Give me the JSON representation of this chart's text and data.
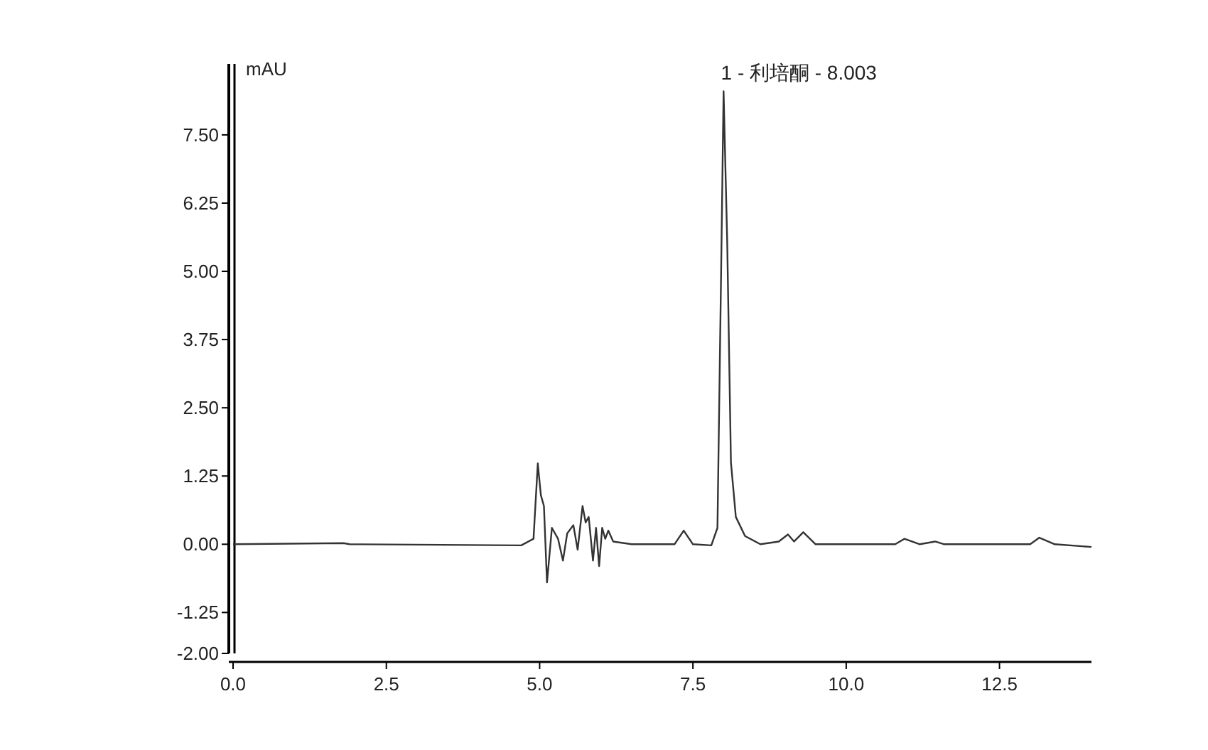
{
  "chart_data": {
    "type": "line",
    "ylabel": "mAU",
    "x": [
      0,
      1.8,
      1.9,
      4.7,
      4.9,
      4.97,
      5.02,
      5.07,
      5.12,
      5.2,
      5.3,
      5.38,
      5.45,
      5.55,
      5.62,
      5.7,
      5.75,
      5.8,
      5.87,
      5.92,
      5.97,
      6.02,
      6.07,
      6.12,
      6.2,
      6.5,
      7.2,
      7.35,
      7.5,
      7.8,
      7.9,
      7.96,
      8.0,
      8.06,
      8.12,
      8.2,
      8.35,
      8.6,
      8.9,
      9.05,
      9.15,
      9.3,
      9.5,
      10.8,
      10.95,
      11.2,
      11.45,
      11.6,
      13.0,
      13.15,
      13.4,
      14.0
    ],
    "series": [
      {
        "color": "#333333",
        "values": [
          0,
          0.02,
          0,
          -0.02,
          0.1,
          1.48,
          0.9,
          0.7,
          -0.7,
          0.3,
          0.1,
          -0.3,
          0.2,
          0.35,
          -0.1,
          0.7,
          0.4,
          0.5,
          -0.3,
          0.3,
          -0.4,
          0.3,
          0.1,
          0.25,
          0.05,
          0,
          0,
          0.25,
          0,
          -0.02,
          0.3,
          5.0,
          8.3,
          5.5,
          1.5,
          0.5,
          0.15,
          0,
          0.05,
          0.18,
          0.05,
          0.22,
          0,
          0,
          0.1,
          0,
          0.05,
          0,
          0,
          0.12,
          0,
          -0.05
        ]
      }
    ],
    "xlim": [
      0,
      14
    ],
    "ylim": [
      -2,
      8.8
    ],
    "xticks": [
      {
        "value": 0,
        "label": "0.0"
      },
      {
        "value": 2.5,
        "label": "2.5"
      },
      {
        "value": 5,
        "label": "5.0"
      },
      {
        "value": 7.5,
        "label": "7.5"
      },
      {
        "value": 10,
        "label": "10.0"
      },
      {
        "value": 12.5,
        "label": "12.5"
      }
    ],
    "yticks": [
      {
        "value": -2,
        "label": "-2.00"
      },
      {
        "value": -1.25,
        "label": "-1.25"
      },
      {
        "value": 0,
        "label": "0.00"
      },
      {
        "value": 1.25,
        "label": "1.25"
      },
      {
        "value": 2.5,
        "label": "2.50"
      },
      {
        "value": 3.75,
        "label": "3.75"
      },
      {
        "value": 5,
        "label": "5.00"
      },
      {
        "value": 6.25,
        "label": "6.25"
      },
      {
        "value": 7.5,
        "label": "7.50"
      }
    ],
    "annotations": [
      {
        "text": "1 - 利培酮 - 8.003",
        "x": 8.003,
        "y": 8.3
      }
    ],
    "grid": false,
    "marker": "none",
    "line_style": "solid"
  }
}
